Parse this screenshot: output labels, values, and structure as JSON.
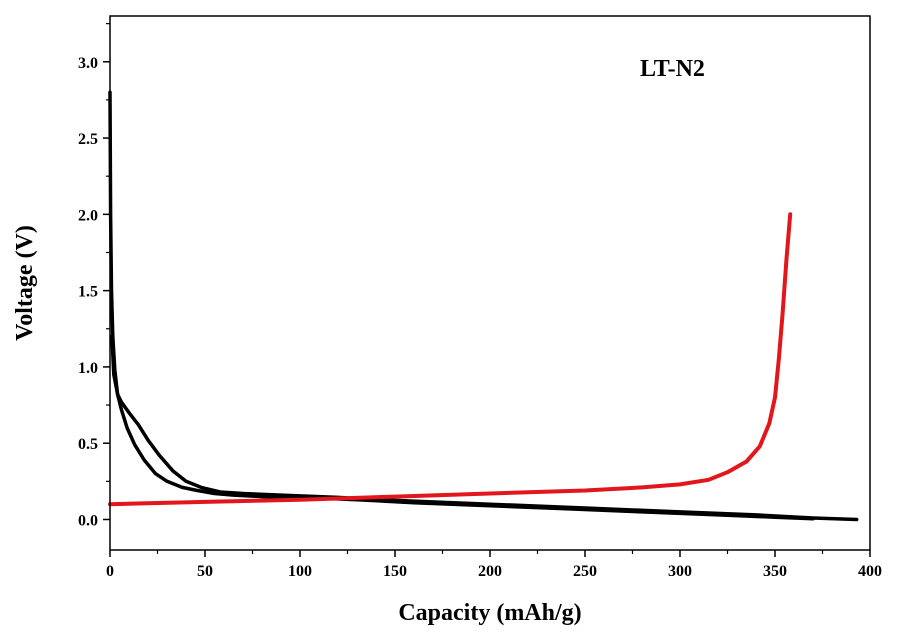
{
  "chart_data": {
    "type": "line",
    "title": "",
    "annotation": "LT-N2",
    "xlabel": "Capacity (mAh/g)",
    "ylabel": "Voltage (V)",
    "xlim": [
      0,
      400
    ],
    "ylim": [
      -0.2,
      3.3
    ],
    "xticks": [
      0,
      50,
      100,
      150,
      200,
      250,
      300,
      350,
      400
    ],
    "xtick_labels": [
      "0",
      "50",
      "100",
      "150",
      "200",
      "250",
      "300",
      "350",
      "400"
    ],
    "yticks": [
      0.0,
      0.5,
      1.0,
      1.5,
      2.0,
      2.5,
      3.0
    ],
    "ytick_labels": [
      "0.0",
      "0.5",
      "1.0",
      "1.5",
      "2.0",
      "2.5",
      "3.0"
    ],
    "grid": false,
    "legend": "none",
    "series": [
      {
        "color": "#000000",
        "x": [
          0,
          0.3,
          0.8,
          1.5,
          2.5,
          4,
          6,
          9,
          13,
          18,
          24,
          30,
          38,
          46,
          55,
          65,
          80,
          100,
          130,
          160,
          200,
          240,
          280,
          320,
          350,
          370
        ],
        "y": [
          2.8,
          2.0,
          1.5,
          1.2,
          0.98,
          0.82,
          0.72,
          0.6,
          0.49,
          0.39,
          0.3,
          0.25,
          0.21,
          0.19,
          0.17,
          0.16,
          0.15,
          0.145,
          0.13,
          0.11,
          0.09,
          0.07,
          0.05,
          0.03,
          0.015,
          0.005
        ]
      },
      {
        "color": "#000000",
        "x": [
          1,
          2,
          4,
          6,
          10,
          15,
          20,
          26,
          33,
          40,
          48,
          58,
          70,
          90,
          120,
          150,
          200,
          250,
          300,
          340,
          370,
          393
        ],
        "y": [
          1.2,
          0.95,
          0.82,
          0.77,
          0.7,
          0.62,
          0.52,
          0.42,
          0.32,
          0.25,
          0.21,
          0.18,
          0.17,
          0.16,
          0.145,
          0.125,
          0.1,
          0.075,
          0.05,
          0.03,
          0.01,
          0.0
        ]
      },
      {
        "color": "#e3161b",
        "x": [
          0,
          50,
          100,
          150,
          200,
          250,
          280,
          300,
          315,
          325,
          335,
          342,
          347,
          350,
          352,
          354,
          356,
          358
        ],
        "y": [
          0.1,
          0.115,
          0.13,
          0.15,
          0.17,
          0.19,
          0.21,
          0.23,
          0.26,
          0.31,
          0.38,
          0.48,
          0.63,
          0.8,
          1.05,
          1.35,
          1.7,
          2.0
        ]
      }
    ]
  }
}
